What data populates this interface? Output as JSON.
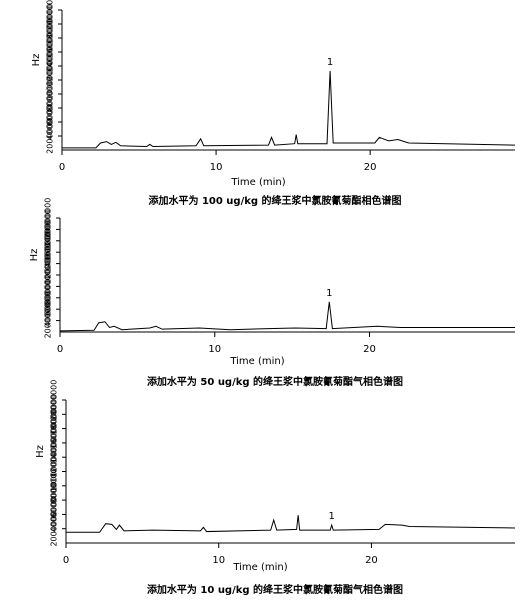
{
  "chart_data": [
    {
      "type": "line",
      "title": "添加水平为 100 ug/kg 的绛王浆中氯胺氰菊酯相色谱图",
      "xlabel": "Time (min)",
      "ylabel": "Hz",
      "xlim": [
        0,
        29.4
      ],
      "xticks": [
        0,
        10,
        20
      ],
      "ylim": [
        0,
        20000000
      ],
      "yticks": [
        2000000,
        4000000,
        6000000,
        8000000,
        10000000,
        12000000,
        14000000,
        16000000,
        18000000,
        20000000
      ],
      "annotations": [
        {
          "text": "1",
          "x": 17.4
        }
      ],
      "series": [
        {
          "color": "#000000",
          "x": [
            0,
            2.2,
            2.5,
            2.9,
            3.2,
            3.5,
            3.8,
            5.5,
            5.7,
            5.9,
            8.7,
            9.0,
            9.2,
            13.4,
            13.6,
            13.8,
            15.1,
            15.2,
            15.3,
            17.2,
            17.4,
            17.6,
            20.3,
            20.6,
            21.2,
            21.8,
            22.5,
            29.4
          ],
          "values": [
            300000,
            300000,
            1000000,
            1200000,
            800000,
            1100000,
            600000,
            500000,
            800000,
            500000,
            600000,
            1600000,
            600000,
            700000,
            1800000,
            700000,
            900000,
            2200000,
            900000,
            900000,
            11300000,
            1000000,
            1000000,
            1800000,
            1300000,
            1500000,
            1000000,
            700000
          ]
        }
      ]
    },
    {
      "type": "line",
      "title": "添加水平为 50 ug/kg 的绛王浆中氯胺氰菊酯气相色谱图",
      "xlabel": "Time (min)",
      "ylabel": "Hz",
      "xlim": [
        0,
        29.4
      ],
      "xticks": [
        0,
        10,
        20
      ],
      "ylim": [
        0,
        20000000
      ],
      "yticks": [
        2000000,
        4000000,
        6000000,
        8000000,
        10000000,
        12000000,
        14000000,
        16000000,
        18000000,
        20000000
      ],
      "annotations": [
        {
          "text": "1",
          "x": 17.4
        }
      ],
      "series": [
        {
          "color": "#000000",
          "x": [
            0,
            2.2,
            2.5,
            2.9,
            3.2,
            3.5,
            4,
            5.8,
            6.2,
            6.6,
            9,
            11,
            13.5,
            15.2,
            17.2,
            17.4,
            17.6,
            20.5,
            22,
            29.4
          ],
          "values": [
            200000,
            300000,
            1600000,
            1800000,
            800000,
            1000000,
            400000,
            700000,
            1000000,
            500000,
            700000,
            400000,
            600000,
            700000,
            600000,
            5300000,
            600000,
            1000000,
            800000,
            800000
          ]
        }
      ]
    },
    {
      "type": "line",
      "title": "添加水平为 10 ug/kg 的绛王浆中氯胺氰菊酯气相色谱图",
      "xlabel": "Time (min)",
      "ylabel": "Hz",
      "xlim": [
        0,
        29.4
      ],
      "xticks": [
        0,
        10,
        20
      ],
      "ylim": [
        0,
        20000000
      ],
      "yticks": [
        2000000,
        4000000,
        6000000,
        8000000,
        10000000,
        12000000,
        14000000,
        16000000,
        18000000,
        20000000
      ],
      "annotations": [
        {
          "text": "1",
          "x": 17.4
        }
      ],
      "series": [
        {
          "color": "#000000",
          "x": [
            0,
            2.2,
            2.6,
            3,
            3.3,
            3.5,
            3.8,
            5.7,
            8.8,
            9,
            9.2,
            13.4,
            13.6,
            13.8,
            15.1,
            15.2,
            15.3,
            17.3,
            17.4,
            17.5,
            20.5,
            20.9,
            22,
            22.5,
            29.4
          ],
          "values": [
            1500000,
            1500000,
            2700000,
            2600000,
            1900000,
            2500000,
            1700000,
            1800000,
            1700000,
            2200000,
            1600000,
            1800000,
            3200000,
            1800000,
            1900000,
            3900000,
            1800000,
            1800000,
            2500000,
            1800000,
            1900000,
            2600000,
            2500000,
            2300000,
            2100000
          ]
        }
      ]
    }
  ]
}
